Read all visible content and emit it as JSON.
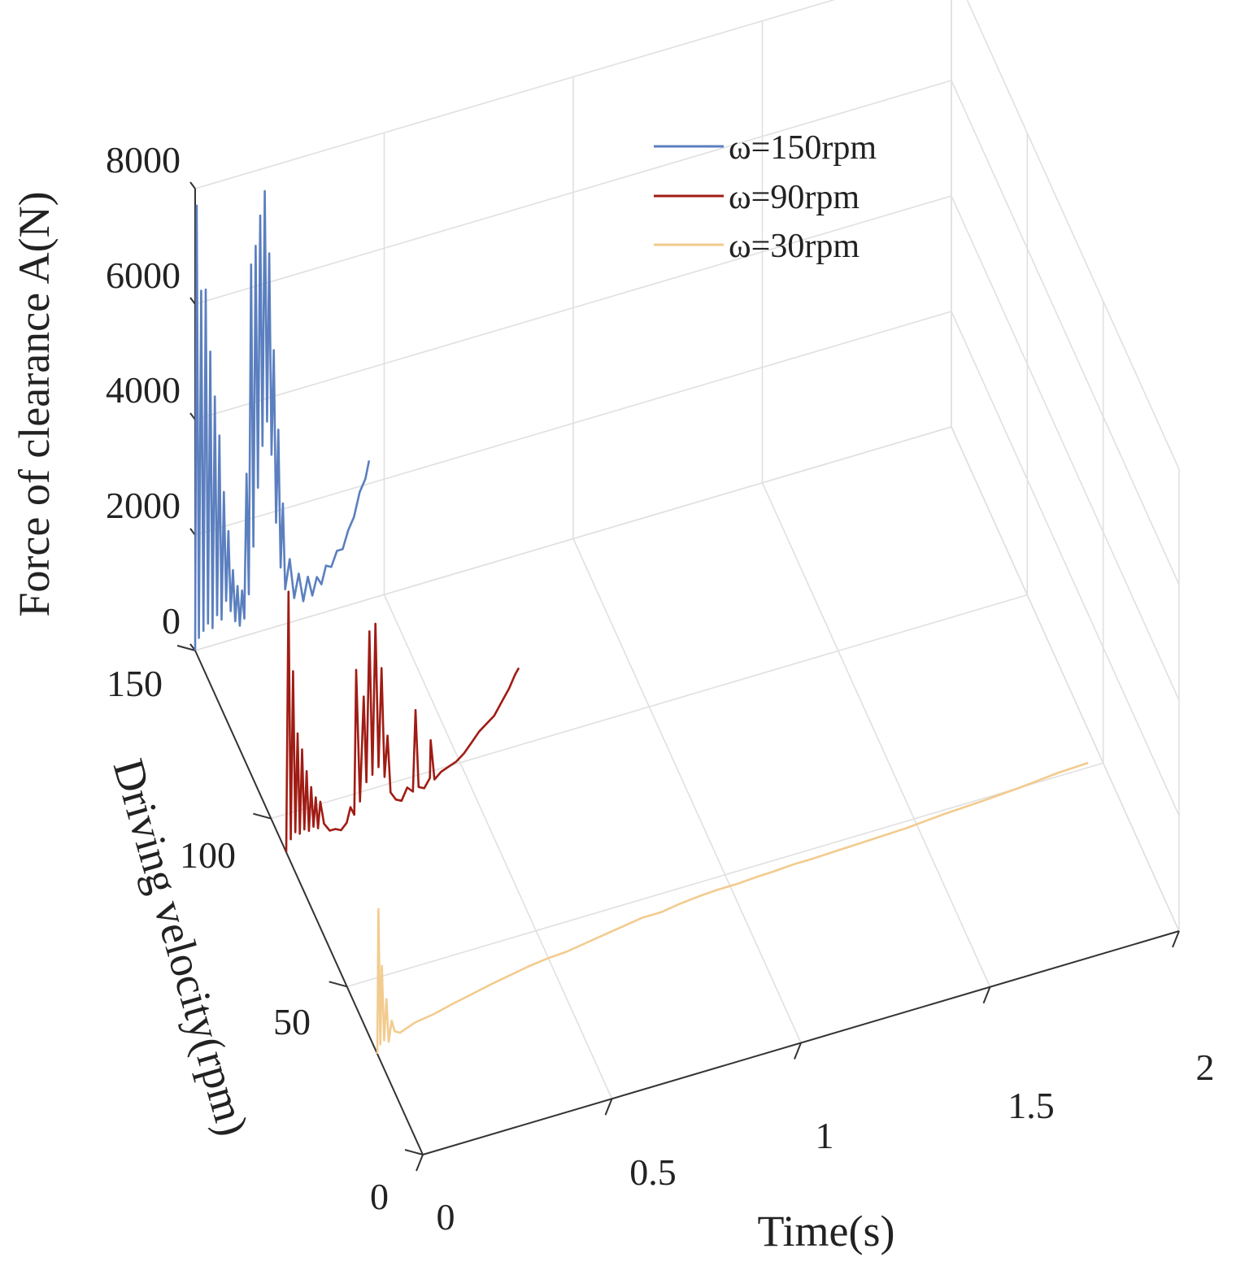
{
  "chart_data": {
    "type": "line",
    "subtype": "3d-waterfall",
    "title": "",
    "xlabel": "Time(s)",
    "ylabel": "Driving velocity(rpm)",
    "zlabel": "Force of clearance A(N)",
    "xlim": [
      0,
      2
    ],
    "ylim": [
      0,
      150
    ],
    "zlim": [
      0,
      8000
    ],
    "x_ticks": [
      "0",
      "0.5",
      "1",
      "1.5",
      "2"
    ],
    "y_ticks": [
      "0",
      "50",
      "100",
      "150"
    ],
    "z_ticks": [
      "0",
      "2000",
      "4000",
      "6000",
      "8000"
    ],
    "grid": true,
    "legend_position": "top-right",
    "series": [
      {
        "name": "ω=150rpm",
        "velocity": 150,
        "color": "#5b7fbf",
        "points": [
          [
            0.0,
            0
          ],
          [
            0.004,
            7700
          ],
          [
            0.01,
            200
          ],
          [
            0.016,
            6200
          ],
          [
            0.022,
            300
          ],
          [
            0.028,
            6200
          ],
          [
            0.034,
            400
          ],
          [
            0.04,
            5100
          ],
          [
            0.046,
            300
          ],
          [
            0.052,
            4300
          ],
          [
            0.058,
            500
          ],
          [
            0.064,
            3600
          ],
          [
            0.07,
            400
          ],
          [
            0.076,
            2600
          ],
          [
            0.082,
            700
          ],
          [
            0.088,
            1900
          ],
          [
            0.094,
            500
          ],
          [
            0.1,
            1200
          ],
          [
            0.106,
            300
          ],
          [
            0.112,
            900
          ],
          [
            0.118,
            200
          ],
          [
            0.124,
            800
          ],
          [
            0.13,
            300
          ],
          [
            0.136,
            2800
          ],
          [
            0.142,
            700
          ],
          [
            0.148,
            6400
          ],
          [
            0.154,
            1500
          ],
          [
            0.16,
            6700
          ],
          [
            0.166,
            2500
          ],
          [
            0.172,
            7200
          ],
          [
            0.178,
            3200
          ],
          [
            0.184,
            7600
          ],
          [
            0.19,
            3600
          ],
          [
            0.196,
            6500
          ],
          [
            0.202,
            3000
          ],
          [
            0.208,
            4800
          ],
          [
            0.214,
            1800
          ],
          [
            0.22,
            3400
          ],
          [
            0.226,
            1000
          ],
          [
            0.232,
            2100
          ],
          [
            0.238,
            600
          ],
          [
            0.25,
            1100
          ],
          [
            0.262,
            400
          ],
          [
            0.274,
            800
          ],
          [
            0.286,
            300
          ],
          [
            0.298,
            700
          ],
          [
            0.31,
            350
          ],
          [
            0.322,
            650
          ],
          [
            0.334,
            500
          ],
          [
            0.346,
            800
          ],
          [
            0.36,
            750
          ],
          [
            0.375,
            1000
          ],
          [
            0.39,
            1000
          ],
          [
            0.405,
            1300
          ],
          [
            0.42,
            1500
          ],
          [
            0.435,
            1900
          ],
          [
            0.45,
            2100
          ],
          [
            0.46,
            2400
          ]
        ]
      },
      {
        "name": "ω=90rpm",
        "velocity": 90,
        "color": "#a01c14",
        "points": [
          [
            0.0,
            0
          ],
          [
            0.006,
            4500
          ],
          [
            0.012,
            200
          ],
          [
            0.018,
            3100
          ],
          [
            0.024,
            300
          ],
          [
            0.03,
            2000
          ],
          [
            0.036,
            250
          ],
          [
            0.042,
            1700
          ],
          [
            0.048,
            300
          ],
          [
            0.054,
            1300
          ],
          [
            0.06,
            250
          ],
          [
            0.066,
            1000
          ],
          [
            0.072,
            300
          ],
          [
            0.078,
            800
          ],
          [
            0.084,
            250
          ],
          [
            0.09,
            700
          ],
          [
            0.1,
            300
          ],
          [
            0.115,
            150
          ],
          [
            0.13,
            150
          ],
          [
            0.145,
            100
          ],
          [
            0.16,
            200
          ],
          [
            0.17,
            450
          ],
          [
            0.18,
            300
          ],
          [
            0.185,
            2800
          ],
          [
            0.195,
            500
          ],
          [
            0.205,
            2300
          ],
          [
            0.212,
            800
          ],
          [
            0.22,
            3400
          ],
          [
            0.228,
            900
          ],
          [
            0.236,
            3500
          ],
          [
            0.244,
            1000
          ],
          [
            0.252,
            2700
          ],
          [
            0.26,
            800
          ],
          [
            0.268,
            1500
          ],
          [
            0.276,
            500
          ],
          [
            0.29,
            350
          ],
          [
            0.305,
            300
          ],
          [
            0.32,
            500
          ],
          [
            0.335,
            400
          ],
          [
            0.342,
            1800
          ],
          [
            0.35,
            450
          ],
          [
            0.365,
            400
          ],
          [
            0.38,
            550
          ],
          [
            0.382,
            1200
          ],
          [
            0.392,
            500
          ],
          [
            0.41,
            600
          ],
          [
            0.43,
            650
          ],
          [
            0.45,
            700
          ],
          [
            0.47,
            800
          ],
          [
            0.49,
            950
          ],
          [
            0.51,
            1100
          ],
          [
            0.53,
            1200
          ],
          [
            0.55,
            1300
          ],
          [
            0.57,
            1500
          ],
          [
            0.59,
            1700
          ],
          [
            0.605,
            1900
          ],
          [
            0.615,
            2000
          ]
        ]
      },
      {
        "name": "ω=30rpm",
        "velocity": 30,
        "color": "#f2cb8e",
        "points": [
          [
            0.0,
            0
          ],
          [
            0.003,
            2500
          ],
          [
            0.008,
            150
          ],
          [
            0.012,
            1500
          ],
          [
            0.018,
            200
          ],
          [
            0.024,
            900
          ],
          [
            0.03,
            150
          ],
          [
            0.038,
            500
          ],
          [
            0.046,
            300
          ],
          [
            0.06,
            250
          ],
          [
            0.08,
            300
          ],
          [
            0.1,
            350
          ],
          [
            0.15,
            400
          ],
          [
            0.2,
            480
          ],
          [
            0.25,
            550
          ],
          [
            0.3,
            620
          ],
          [
            0.35,
            680
          ],
          [
            0.4,
            740
          ],
          [
            0.45,
            780
          ],
          [
            0.5,
            800
          ],
          [
            0.55,
            850
          ],
          [
            0.6,
            900
          ],
          [
            0.65,
            950
          ],
          [
            0.7,
            1000
          ],
          [
            0.75,
            1000
          ],
          [
            0.8,
            1050
          ],
          [
            0.85,
            1080
          ],
          [
            0.9,
            1100
          ],
          [
            0.95,
            1100
          ],
          [
            1.0,
            1120
          ],
          [
            1.05,
            1130
          ],
          [
            1.1,
            1150
          ],
          [
            1.15,
            1150
          ],
          [
            1.2,
            1160
          ],
          [
            1.3,
            1180
          ],
          [
            1.4,
            1200
          ],
          [
            1.5,
            1250
          ],
          [
            1.6,
            1280
          ],
          [
            1.7,
            1320
          ],
          [
            1.8,
            1380
          ],
          [
            1.88,
            1400
          ]
        ]
      }
    ]
  }
}
